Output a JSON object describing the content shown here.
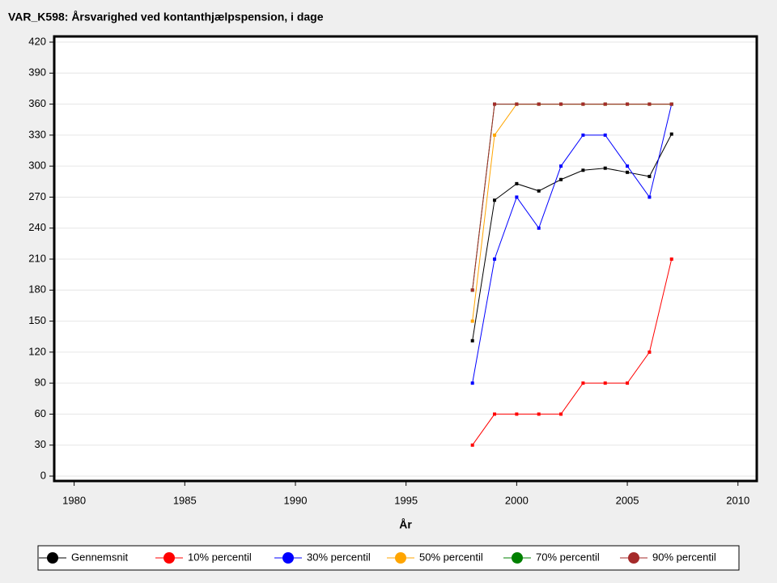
{
  "chart_data": {
    "type": "line",
    "title": "VAR_K598: Årsvarighed ved kontanthjælpspension, i dage",
    "x_label": "År",
    "x": [
      1998,
      1999,
      2000,
      2001,
      2002,
      2003,
      2004,
      2005,
      2006,
      2007
    ],
    "xlim": [
      1979.1,
      2010.85
    ],
    "xticks": [
      1980,
      1985,
      1990,
      1995,
      2000,
      2005,
      2010
    ],
    "ylim": [
      -4.7,
      425.5
    ],
    "yticks": [
      0,
      30,
      60,
      90,
      120,
      150,
      180,
      210,
      240,
      270,
      300,
      330,
      360,
      390,
      420
    ],
    "grid": true,
    "legend": "bottom",
    "series": [
      {
        "name": "Gennemsnit",
        "color": "#000000",
        "values": [
          131,
          267,
          283,
          276,
          287,
          296,
          298,
          294,
          290,
          331
        ]
      },
      {
        "name": "10% percentil",
        "color": "#ff0000",
        "values": [
          30,
          60,
          60,
          60,
          60,
          90,
          90,
          90,
          120,
          210
        ]
      },
      {
        "name": "30% percentil",
        "color": "#0000ff",
        "values": [
          90,
          210,
          270,
          240,
          300,
          330,
          330,
          300,
          270,
          360
        ]
      },
      {
        "name": "50% percentil",
        "color": "#ffa500",
        "values": [
          150,
          330,
          360,
          360,
          360,
          360,
          360,
          360,
          360,
          360
        ]
      },
      {
        "name": "70% percentil",
        "color": "#008000",
        "values": [
          180,
          360,
          360,
          360,
          360,
          360,
          360,
          360,
          360,
          360
        ]
      },
      {
        "name": "90% percentil",
        "color": "#a52a2a",
        "values": [
          180,
          360,
          360,
          360,
          360,
          360,
          360,
          360,
          360,
          360
        ]
      }
    ]
  }
}
